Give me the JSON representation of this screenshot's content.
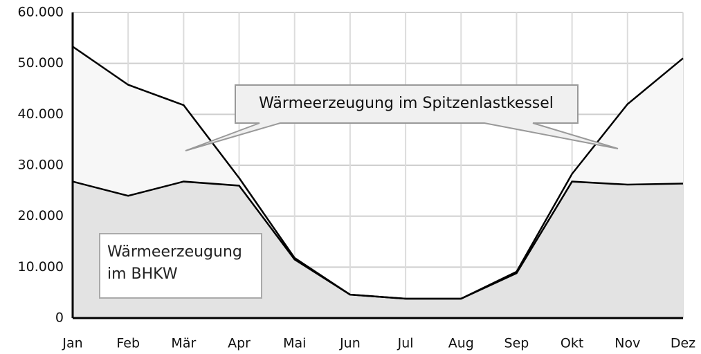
{
  "chart_data": {
    "type": "stacked-area",
    "categories": [
      "Jan",
      "Feb",
      "Mär",
      "Apr",
      "Mai",
      "Jun",
      "Jul",
      "Aug",
      "Sep",
      "Okt",
      "Nov",
      "Dez"
    ],
    "series": [
      {
        "name": "Wärmeerzeugung im BHKW",
        "color": "#e3e3e3",
        "values": [
          26800,
          24000,
          26800,
          26000,
          11500,
          4600,
          3800,
          3800,
          8800,
          26800,
          26200,
          26400
        ]
      },
      {
        "name": "Wärmeerzeugung im Spitzenlastkessel",
        "color": "#f7f7f7",
        "values": [
          26500,
          21800,
          15000,
          1500,
          300,
          0,
          0,
          0,
          300,
          1500,
          15800,
          24600
        ]
      }
    ],
    "line_color": "#000000",
    "ylim": [
      0,
      60000
    ],
    "yticks": [
      0,
      {
        "value": 10000,
        "label": "10.000"
      },
      {
        "value": 20000,
        "label": "20.000"
      },
      {
        "value": 30000,
        "label": "30.000"
      },
      {
        "value": 40000,
        "label": "40.000"
      },
      {
        "value": 50000,
        "label": "50.000"
      },
      {
        "value": 60000,
        "label": "60.000"
      }
    ],
    "grid": true
  }
}
